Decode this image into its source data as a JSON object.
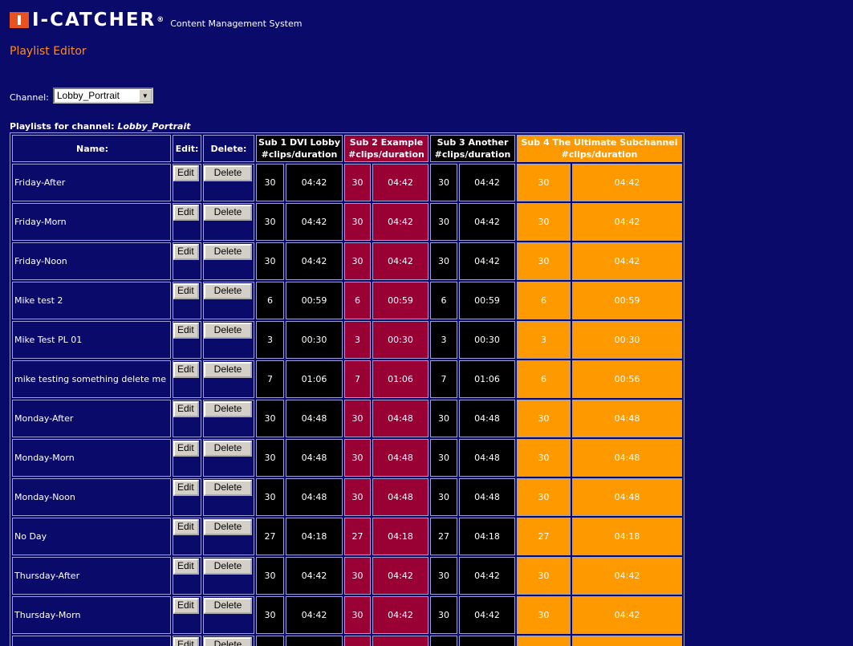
{
  "header": {
    "logo_text": "I-CATCHER",
    "logo_reg": "®",
    "subtitle": "Content Management System",
    "page_title": "Playlist Editor"
  },
  "channel": {
    "label": "Channel:",
    "selected": "Lobby_Portrait"
  },
  "playlists_caption": {
    "prefix": "Playlists for channel: ",
    "channel": "Lobby_Portrait"
  },
  "table": {
    "headers": {
      "name": "Name:",
      "edit": "Edit:",
      "delete": "Delete:",
      "sub1_line1": "Sub 1 DVI Lobby",
      "sub1_line2": "#clips/duration",
      "sub2_line1": "Sub 2 Example",
      "sub2_line2": "#clips/duration",
      "sub3_line1": "Sub 3 Another",
      "sub3_line2": "#clips/duration",
      "sub4_line1": "Sub 4 The Ultimate Subchannel",
      "sub4_line2": "#clips/duration"
    },
    "edit_label": "Edit",
    "delete_label": "Delete",
    "colors": {
      "sub1": "#000000",
      "sub2": "#990033",
      "sub3": "#000000",
      "sub4": "#ff9900"
    },
    "rows": [
      {
        "name": "Friday-After",
        "s1c": "30",
        "s1d": "04:42",
        "s2c": "30",
        "s2d": "04:42",
        "s3c": "30",
        "s3d": "04:42",
        "s4c": "30",
        "s4d": "04:42"
      },
      {
        "name": "Friday-Morn",
        "s1c": "30",
        "s1d": "04:42",
        "s2c": "30",
        "s2d": "04:42",
        "s3c": "30",
        "s3d": "04:42",
        "s4c": "30",
        "s4d": "04:42"
      },
      {
        "name": "Friday-Noon",
        "s1c": "30",
        "s1d": "04:42",
        "s2c": "30",
        "s2d": "04:42",
        "s3c": "30",
        "s3d": "04:42",
        "s4c": "30",
        "s4d": "04:42"
      },
      {
        "name": "Mike test 2",
        "s1c": "6",
        "s1d": "00:59",
        "s2c": "6",
        "s2d": "00:59",
        "s3c": "6",
        "s3d": "00:59",
        "s4c": "6",
        "s4d": "00:59"
      },
      {
        "name": "Mike Test PL 01",
        "s1c": "3",
        "s1d": "00:30",
        "s2c": "3",
        "s2d": "00:30",
        "s3c": "3",
        "s3d": "00:30",
        "s4c": "3",
        "s4d": "00:30"
      },
      {
        "name": "mike testing something delete me",
        "s1c": "7",
        "s1d": "01:06",
        "s2c": "7",
        "s2d": "01:06",
        "s3c": "7",
        "s3d": "01:06",
        "s4c": "6",
        "s4d": "00:56"
      },
      {
        "name": "Monday-After",
        "s1c": "30",
        "s1d": "04:48",
        "s2c": "30",
        "s2d": "04:48",
        "s3c": "30",
        "s3d": "04:48",
        "s4c": "30",
        "s4d": "04:48"
      },
      {
        "name": "Monday-Morn",
        "s1c": "30",
        "s1d": "04:48",
        "s2c": "30",
        "s2d": "04:48",
        "s3c": "30",
        "s3d": "04:48",
        "s4c": "30",
        "s4d": "04:48"
      },
      {
        "name": "Monday-Noon",
        "s1c": "30",
        "s1d": "04:48",
        "s2c": "30",
        "s2d": "04:48",
        "s3c": "30",
        "s3d": "04:48",
        "s4c": "30",
        "s4d": "04:48"
      },
      {
        "name": "No Day",
        "s1c": "27",
        "s1d": "04:18",
        "s2c": "27",
        "s2d": "04:18",
        "s3c": "27",
        "s3d": "04:18",
        "s4c": "27",
        "s4d": "04:18"
      },
      {
        "name": "Thursday-After",
        "s1c": "30",
        "s1d": "04:42",
        "s2c": "30",
        "s2d": "04:42",
        "s3c": "30",
        "s3d": "04:42",
        "s4c": "30",
        "s4d": "04:42"
      },
      {
        "name": "Thursday-Morn",
        "s1c": "30",
        "s1d": "04:42",
        "s2c": "30",
        "s2d": "04:42",
        "s3c": "30",
        "s3d": "04:42",
        "s4c": "30",
        "s4d": "04:42"
      },
      {
        "name": "",
        "s1c": "",
        "s1d": "",
        "s2c": "",
        "s2d": "",
        "s3c": "",
        "s3d": "",
        "s4c": "",
        "s4d": ""
      }
    ]
  }
}
